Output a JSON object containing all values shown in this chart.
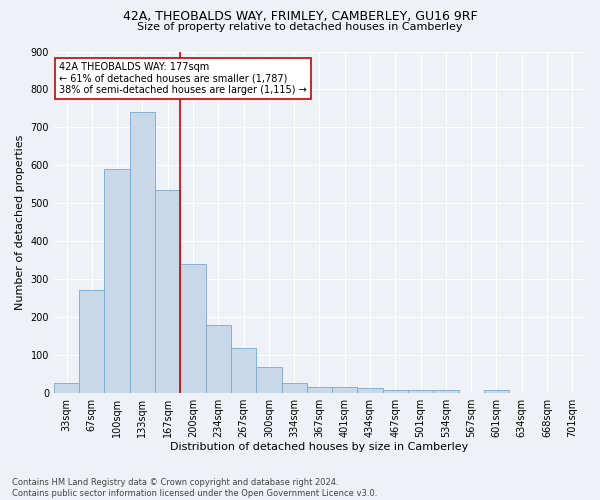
{
  "title1": "42A, THEOBALDS WAY, FRIMLEY, CAMBERLEY, GU16 9RF",
  "title2": "Size of property relative to detached houses in Camberley",
  "xlabel": "Distribution of detached houses by size in Camberley",
  "ylabel": "Number of detached properties",
  "bin_labels": [
    "33sqm",
    "67sqm",
    "100sqm",
    "133sqm",
    "167sqm",
    "200sqm",
    "234sqm",
    "267sqm",
    "300sqm",
    "334sqm",
    "367sqm",
    "401sqm",
    "434sqm",
    "467sqm",
    "501sqm",
    "534sqm",
    "567sqm",
    "601sqm",
    "634sqm",
    "668sqm",
    "701sqm"
  ],
  "bar_values": [
    25,
    270,
    590,
    740,
    535,
    340,
    178,
    118,
    68,
    25,
    15,
    15,
    12,
    8,
    7,
    7,
    0,
    8,
    0,
    0,
    0
  ],
  "bar_color": "#c8d8e8",
  "bar_edge_color": "#7aa8cc",
  "vline_color": "#cc0000",
  "annotation_text": "42A THEOBALDS WAY: 177sqm\n← 61% of detached houses are smaller (1,787)\n38% of semi-detached houses are larger (1,115) →",
  "annotation_box_color": "#ffffff",
  "annotation_box_edge_color": "#cc0000",
  "ylim": [
    0,
    900
  ],
  "yticks": [
    0,
    100,
    200,
    300,
    400,
    500,
    600,
    700,
    800,
    900
  ],
  "footnote": "Contains HM Land Registry data © Crown copyright and database right 2024.\nContains public sector information licensed under the Open Government Licence v3.0.",
  "bg_color": "#eef2f7",
  "plot_bg_color": "#eef2f7",
  "grid_color": "#ffffff",
  "title1_fontsize": 9,
  "title2_fontsize": 8,
  "xlabel_fontsize": 8,
  "ylabel_fontsize": 8,
  "tick_fontsize": 7,
  "annotation_fontsize": 7,
  "footnote_fontsize": 6
}
